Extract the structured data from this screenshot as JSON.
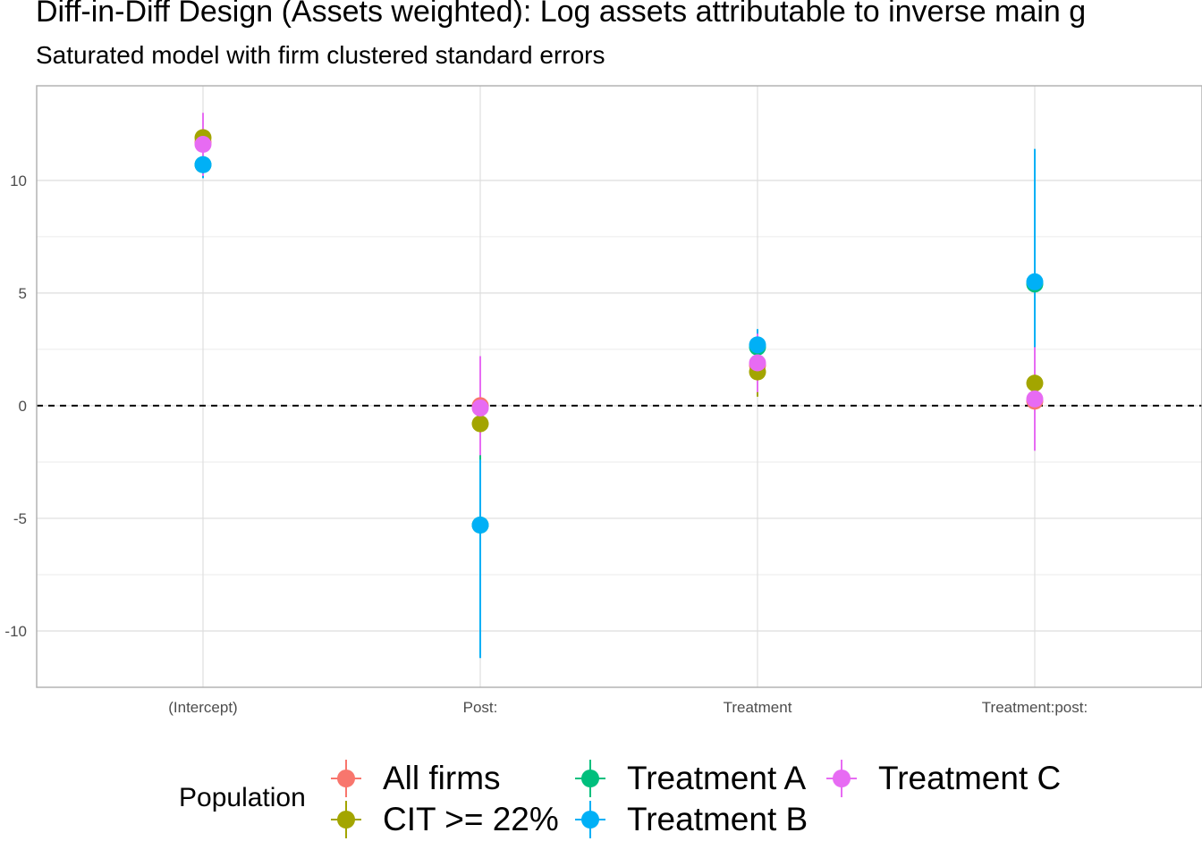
{
  "title": "Diff-in-Diff Design (Assets weighted): Log assets attributable to inverse main g",
  "subtitle": "Saturated model with firm clustered standard errors",
  "legend": {
    "title": "Population",
    "items": [
      {
        "label": "All firms",
        "color": "#F8766D"
      },
      {
        "label": "CIT >= 22%",
        "color": "#A3A500"
      },
      {
        "label": "Treatment A",
        "color": "#00BF7D"
      },
      {
        "label": "Treatment B",
        "color": "#00B0F6"
      },
      {
        "label": "Treatment C",
        "color": "#E76BF3"
      }
    ]
  },
  "chart_data": {
    "type": "scatter",
    "categories": [
      "(Intercept)",
      "Post:",
      "Treatment",
      "Treatment:post:"
    ],
    "yticks": [
      -10,
      -5,
      0,
      5,
      10
    ],
    "ylim": [
      -12.5,
      14.2
    ],
    "reference_line": 0,
    "grid": true,
    "legend_position": "bottom",
    "series": [
      {
        "name": "All firms",
        "color": "#F8766D",
        "estimates": [
          11.7,
          0.0,
          1.8,
          0.2
        ],
        "lower": [
          10.6,
          -2.0,
          0.5,
          -1.5
        ],
        "upper": [
          12.8,
          2.0,
          3.1,
          2.0
        ]
      },
      {
        "name": "CIT >= 22%",
        "color": "#A3A500",
        "estimates": [
          11.9,
          -0.8,
          1.5,
          1.0
        ],
        "lower": [
          10.9,
          -2.3,
          0.4,
          -0.6
        ],
        "upper": [
          12.9,
          0.7,
          2.6,
          2.6
        ]
      },
      {
        "name": "Treatment A",
        "color": "#00BF7D",
        "estimates": [
          10.7,
          -5.3,
          2.6,
          5.4
        ],
        "lower": [
          10.2,
          -11.1,
          1.9,
          -0.5
        ],
        "upper": [
          11.2,
          0.4,
          3.3,
          11.3
        ]
      },
      {
        "name": "Treatment B",
        "color": "#00B0F6",
        "estimates": [
          10.7,
          -5.3,
          2.7,
          5.5
        ],
        "lower": [
          10.1,
          -11.2,
          2.0,
          -0.4
        ],
        "upper": [
          11.3,
          -2.4,
          3.4,
          11.4
        ]
      },
      {
        "name": "Treatment C",
        "color": "#E76BF3",
        "estimates": [
          11.6,
          -0.1,
          1.9,
          0.3
        ],
        "lower": [
          10.2,
          -2.2,
          0.6,
          -2.0
        ],
        "upper": [
          13.0,
          2.2,
          3.2,
          2.6
        ]
      }
    ]
  }
}
